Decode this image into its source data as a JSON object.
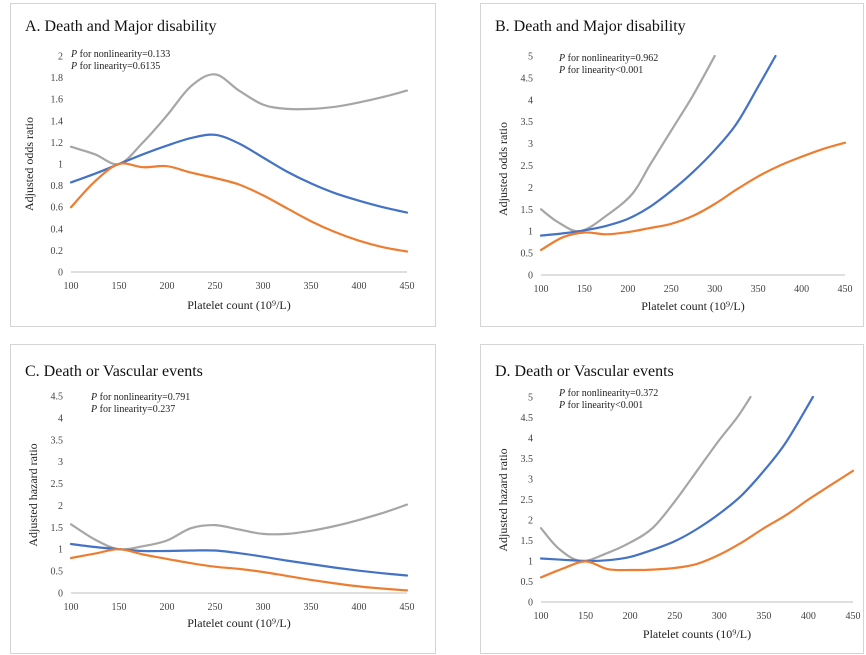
{
  "colors": {
    "gray": "#a6a6a6",
    "blue": "#4472c4",
    "orange": "#ed7d31"
  },
  "chart_data": [
    {
      "panel": "A",
      "type": "line",
      "title": "A. Death and Major disability",
      "p_nonlinearity": "for nonlinearity=0.133",
      "p_linearity": "for linearity=0.6135",
      "p_symbol": "P",
      "xlabel": "Platelet count (10⁹/L)",
      "ylabel": "Adjusted odds ratio",
      "xlim": [
        100,
        450
      ],
      "ylim": [
        0,
        2
      ],
      "x_ticks": [
        "100",
        "150",
        "200",
        "250",
        "300",
        "350",
        "400",
        "450"
      ],
      "y_ticks": [
        "0",
        "0.2",
        "0.4",
        "0.6",
        "0.8",
        "1",
        "1.2",
        "1.4",
        "1.6",
        "1.8",
        "2"
      ],
      "x": [
        100,
        125,
        150,
        175,
        200,
        225,
        250,
        275,
        300,
        325,
        350,
        375,
        400,
        425,
        450
      ],
      "series": [
        {
          "color": "gray",
          "values": [
            1.16,
            1.09,
            1.0,
            1.2,
            1.45,
            1.72,
            1.83,
            1.68,
            1.55,
            1.51,
            1.51,
            1.53,
            1.57,
            1.62,
            1.68
          ]
        },
        {
          "color": "blue",
          "values": [
            0.83,
            0.91,
            1.0,
            1.09,
            1.17,
            1.24,
            1.27,
            1.19,
            1.06,
            0.93,
            0.82,
            0.73,
            0.66,
            0.6,
            0.55
          ]
        },
        {
          "color": "orange",
          "values": [
            0.6,
            0.84,
            1.0,
            0.97,
            0.98,
            0.92,
            0.87,
            0.81,
            0.71,
            0.59,
            0.47,
            0.37,
            0.29,
            0.23,
            0.19
          ]
        }
      ]
    },
    {
      "panel": "B",
      "type": "line",
      "title": "B. Death and Major disability",
      "p_nonlinearity": "for nonlinearity=0.962",
      "p_linearity": "for linearity<0.001",
      "p_symbol": "P",
      "xlabel": "Platelet count (10⁹/L)",
      "ylabel": "Adjusted odds ratio",
      "xlim": [
        100,
        450
      ],
      "ylim": [
        0,
        5
      ],
      "x_ticks": [
        "100",
        "150",
        "200",
        "250",
        "300",
        "350",
        "400",
        "450"
      ],
      "y_ticks": [
        "0",
        "0.5",
        "1",
        "1.5",
        "2",
        "2.5",
        "3",
        "3.5",
        "4",
        "4.5",
        "5"
      ],
      "series": [
        {
          "color": "gray",
          "x": [
            100,
            120,
            145,
            175,
            205,
            225,
            250,
            275,
            300
          ],
          "values": [
            1.5,
            1.2,
            1.0,
            1.35,
            1.85,
            2.5,
            3.3,
            4.1,
            5.0
          ]
        },
        {
          "color": "blue",
          "x": [
            100,
            125,
            150,
            175,
            200,
            225,
            250,
            275,
            300,
            325,
            350,
            370
          ],
          "values": [
            0.9,
            0.95,
            1.02,
            1.12,
            1.28,
            1.55,
            1.92,
            2.35,
            2.85,
            3.45,
            4.3,
            5.0
          ]
        },
        {
          "color": "orange",
          "x": [
            100,
            125,
            150,
            175,
            200,
            225,
            250,
            275,
            300,
            325,
            350,
            375,
            400,
            425,
            450
          ],
          "values": [
            0.57,
            0.86,
            0.97,
            0.93,
            0.98,
            1.07,
            1.17,
            1.35,
            1.62,
            1.95,
            2.25,
            2.5,
            2.7,
            2.88,
            3.02
          ]
        }
      ]
    },
    {
      "panel": "C",
      "type": "line",
      "title": "C. Death or Vascular  events",
      "p_nonlinearity": "for nonlinearity=0.791",
      "p_linearity": "for linearity=0.237",
      "p_symbol": "P",
      "xlabel": "Platelet count (10⁹/L)",
      "ylabel": "Adjusted hazard ratio",
      "xlim": [
        100,
        450
      ],
      "ylim": [
        0,
        4.5
      ],
      "x_ticks": [
        "100",
        "150",
        "200",
        "250",
        "300",
        "350",
        "400",
        "450"
      ],
      "y_ticks": [
        "0",
        "0.5",
        "1",
        "1.5",
        "2",
        "2.5",
        "3",
        "3.5",
        "4",
        "4.5"
      ],
      "x": [
        100,
        125,
        150,
        175,
        200,
        225,
        250,
        275,
        300,
        325,
        350,
        375,
        400,
        425,
        450
      ],
      "series": [
        {
          "color": "gray",
          "values": [
            1.57,
            1.22,
            1.0,
            1.07,
            1.2,
            1.48,
            1.55,
            1.45,
            1.35,
            1.35,
            1.42,
            1.53,
            1.67,
            1.83,
            2.02
          ]
        },
        {
          "color": "blue",
          "values": [
            1.12,
            1.05,
            1.0,
            0.96,
            0.96,
            0.97,
            0.97,
            0.91,
            0.83,
            0.74,
            0.66,
            0.58,
            0.51,
            0.45,
            0.4
          ]
        },
        {
          "color": "orange",
          "values": [
            0.8,
            0.9,
            1.0,
            0.88,
            0.78,
            0.68,
            0.6,
            0.55,
            0.48,
            0.39,
            0.3,
            0.22,
            0.15,
            0.1,
            0.06
          ]
        }
      ]
    },
    {
      "panel": "D",
      "type": "line",
      "title": "D. Death or Vascular  events",
      "p_nonlinearity": "for nonlinearity=0.372",
      "p_linearity": "for linearity<0.001",
      "p_symbol": "P",
      "xlabel": "Platelet counts (10⁹/L)",
      "ylabel": "Adjusted hazard ratio",
      "xlim": [
        100,
        450
      ],
      "ylim": [
        0,
        5
      ],
      "x_ticks": [
        "100",
        "150",
        "200",
        "250",
        "300",
        "350",
        "400",
        "450"
      ],
      "y_ticks": [
        "0",
        "0.5",
        "1",
        "1.5",
        "2",
        "2.5",
        "3",
        "3.5",
        "4",
        "4.5",
        "5"
      ],
      "series": [
        {
          "color": "gray",
          "x": [
            100,
            120,
            145,
            175,
            200,
            225,
            250,
            275,
            300,
            320,
            335
          ],
          "values": [
            1.8,
            1.3,
            1.0,
            1.2,
            1.45,
            1.8,
            2.45,
            3.2,
            3.95,
            4.5,
            5.0
          ]
        },
        {
          "color": "blue",
          "x": [
            100,
            125,
            150,
            175,
            200,
            225,
            250,
            275,
            300,
            325,
            350,
            375,
            405
          ],
          "values": [
            1.06,
            1.03,
            1.0,
            1.02,
            1.1,
            1.27,
            1.48,
            1.78,
            2.15,
            2.6,
            3.2,
            3.9,
            5.0
          ]
        },
        {
          "color": "orange",
          "x": [
            100,
            125,
            150,
            175,
            200,
            225,
            250,
            275,
            300,
            325,
            350,
            375,
            400,
            425,
            450
          ],
          "values": [
            0.6,
            0.82,
            0.99,
            0.8,
            0.78,
            0.79,
            0.83,
            0.93,
            1.15,
            1.45,
            1.8,
            2.12,
            2.5,
            2.85,
            3.2
          ]
        }
      ]
    }
  ]
}
